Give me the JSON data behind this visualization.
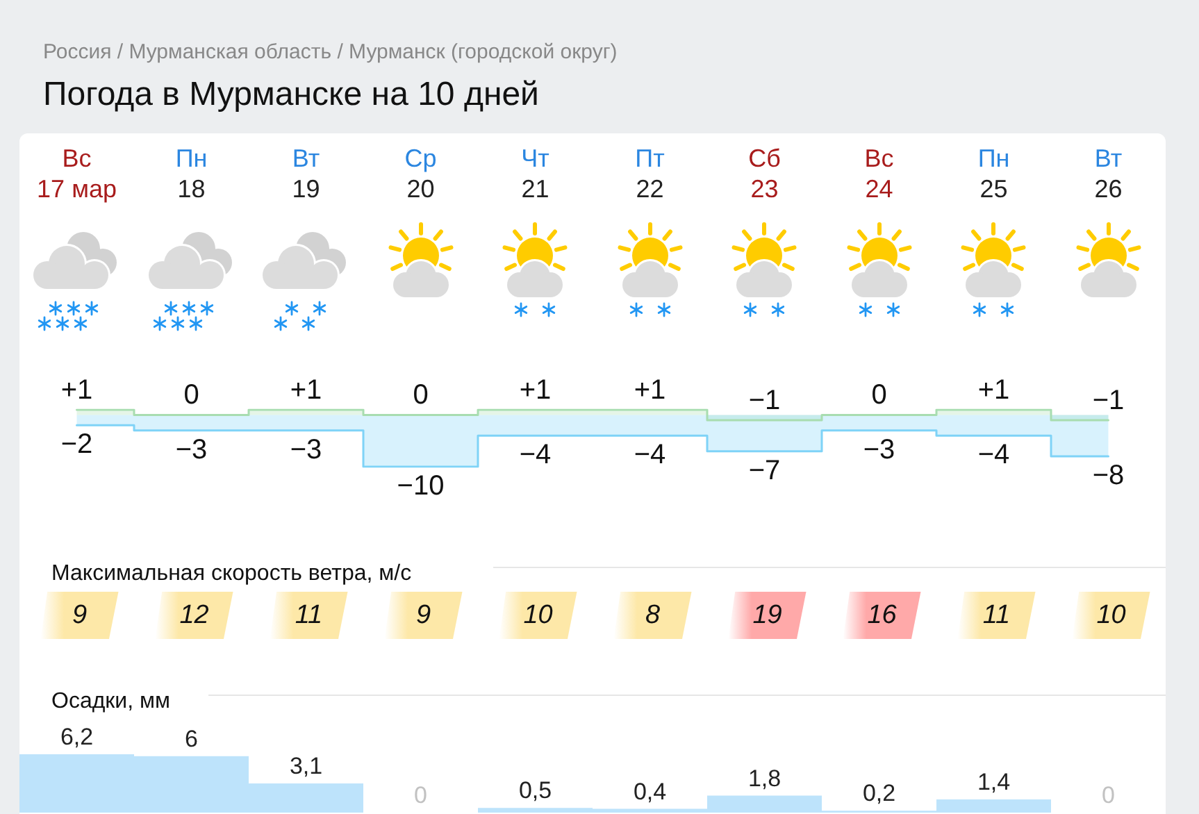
{
  "chart_data": [
    {
      "type": "step",
      "title": "Погода в Мурманске на 10 дней",
      "subtitle": "Россия / Мурманская область / Мурманск (городской округ)",
      "categories": [
        "Вс\n17 мар",
        "Пн\n18",
        "Вт\n19",
        "Ср\n20",
        "Чт\n21",
        "Пт\n22",
        "Сб\n23",
        "Вс\n24",
        "Пн\n25",
        "Вт\n26"
      ],
      "series": [
        {
          "color": "#a8ddb0",
          "values": [
            1,
            0,
            1,
            0,
            1,
            1,
            -1,
            0,
            1,
            -1
          ],
          "value_labels": [
            "+1",
            "0",
            "+1",
            "0",
            "+1",
            "+1",
            "−1",
            "0",
            "+1",
            "−1"
          ]
        },
        {
          "color": "#7fd3f7",
          "values": [
            -2,
            -3,
            -3,
            -10,
            -4,
            -4,
            -7,
            -3,
            -4,
            -8
          ],
          "value_labels": [
            "−2",
            "−3",
            "−3",
            "−10",
            "−4",
            "−4",
            "−7",
            "−3",
            "−4",
            "−8"
          ]
        }
      ],
      "tick_labels": "x"
    },
    {
      "type": "other",
      "title": "Максимальная скорость ветра, м/с",
      "categories": [
        null,
        null,
        null,
        null,
        null,
        null,
        null,
        null,
        null,
        null
      ],
      "values": [
        9,
        12,
        11,
        9,
        10,
        8,
        19,
        16,
        11,
        10
      ],
      "colors": [
        "#fde8a8",
        "#fde8a8",
        "#fde8a8",
        "#fde8a8",
        "#fde8a8",
        "#fde8a8",
        "#ffa9a9",
        "#ffa9a9",
        "#fde8a8",
        "#fde8a8"
      ],
      "data_labels": true
    },
    {
      "type": "bar",
      "title": "Осадки, мм",
      "categories": [
        null,
        null,
        null,
        null,
        null,
        null,
        null,
        null,
        null,
        null
      ],
      "values": [
        6.2,
        6,
        3.1,
        0,
        0.5,
        0.4,
        1.8,
        0.2,
        1.4,
        0
      ],
      "value_labels": [
        "6,2",
        "6",
        "3,1",
        "0",
        "0,5",
        "0,4",
        "1,8",
        "0,2",
        "1,4",
        "0"
      ],
      "color": "#bde3fb",
      "tick_labels": false
    }
  ]
}
